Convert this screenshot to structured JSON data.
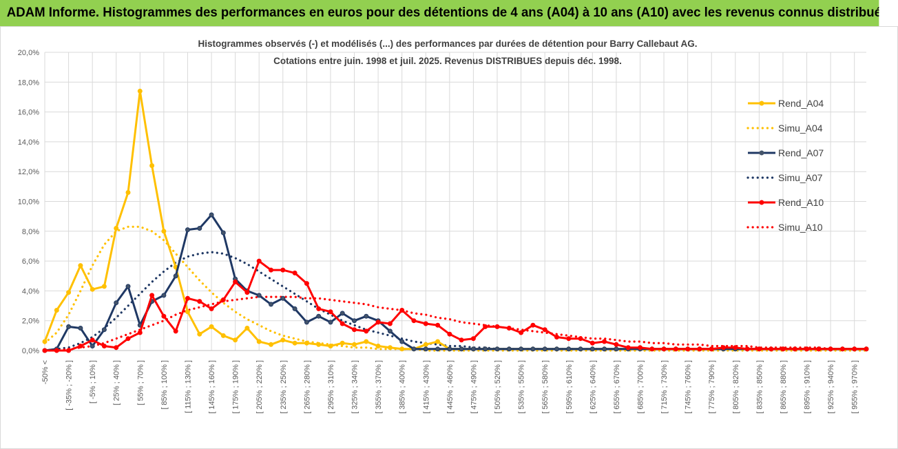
{
  "banner": {
    "title": "ADAM Informe. Histogrammes des performances en euros pour des détentions de 4 ans (A04) à 10 ans (A10) avec les revenus connus distribués"
  },
  "colors": {
    "banner_bg": "#92d050",
    "rend_a04": "#ffc000",
    "simu_a04": "#ffc000",
    "rend_a07": "#1f3864",
    "simu_a07": "#1f3864",
    "rend_a10": "#ff0000",
    "simu_a10": "#ff0000"
  },
  "chart_data": {
    "type": "line",
    "title_lines": [
      "Histogrammes observés (-) et modélisés (...)  des performances par durées de détention pour Barry Callebaut AG.",
      "Cotations entre juin. 1998 et juil. 2025. Revenus DISTRIBUES depuis déc. 1998."
    ],
    "xlabel": "",
    "ylabel": "",
    "ylim": [
      0,
      0.2
    ],
    "y_ticks": [
      "0,0%",
      "2,0%",
      "4,0%",
      "6,0%",
      "8,0%",
      "10,0%",
      "12,0%",
      "14,0%",
      "16,0%",
      "18,0%",
      "20,0%"
    ],
    "y_tick_values": [
      0,
      0.02,
      0.04,
      0.06,
      0.08,
      0.1,
      0.12,
      0.14,
      0.16,
      0.18,
      0.2
    ],
    "grid": true,
    "legend_position": "top-right",
    "x_tick_labels": [
      "-50% <",
      "[ -35% ; -20% ]",
      "[ -5% ; 10% ]",
      "[ 25% ; 40% ]",
      "[ 55% ; 70% ]",
      "[ 85% ; 100% ]",
      "[ 115% ; 130% ]",
      "[ 145% ; 160% ]",
      "[ 175% ; 190% ]",
      "[ 205% ; 220% ]",
      "[ 235% ; 250% ]",
      "[ 265% ; 280% ]",
      "[ 295% ; 310% ]",
      "[ 325% ; 340% ]",
      "[ 355% ; 370% ]",
      "[ 385% ; 400% ]",
      "[ 415% ; 430% ]",
      "[ 445% ; 460% ]",
      "[ 475% ; 490% ]",
      "[ 505% ; 520% ]",
      "[ 535% ; 550% ]",
      "[ 565% ; 580% ]",
      "[ 595% ; 610% ]",
      "[ 625% ; 640% ]",
      "[ 655% ; 670% ]",
      "[ 685% ; 700% ]",
      "[ 715% ; 730% ]",
      "[ 745% ; 760% ]",
      "[ 775% ; 790% ]",
      "[ 805% ; 820% ]",
      "[ 835% ; 850% ]",
      "[ 865% ; 880% ]",
      "[ 895% ; 910% ]",
      "[ 925% ; 940% ]",
      "[ 955% ; 970% ]"
    ],
    "series": [
      {
        "name": "Rend_A04",
        "style": "solid-markers",
        "color": "#ffc000",
        "values": [
          0.006,
          0.027,
          0.039,
          0.057,
          0.041,
          0.043,
          0.082,
          0.106,
          0.174,
          0.124,
          0.08,
          0.056,
          0.026,
          0.011,
          0.016,
          0.01,
          0.007,
          0.015,
          0.006,
          0.004,
          0.007,
          0.005,
          0.005,
          0.004,
          0.003,
          0.005,
          0.004,
          0.006,
          0.003,
          0.002,
          0.001,
          0.001,
          0.004,
          0.006,
          0.001,
          0.001,
          0.001,
          0.001,
          0.001,
          0.001,
          0.001,
          0.001,
          0.001,
          0.001,
          0.001,
          0.001,
          0.001,
          0.001,
          0.001,
          0.001,
          0.001,
          0.001,
          0.001,
          0.001,
          0.001,
          0.001,
          0.001,
          0.001,
          0.001,
          0.001,
          0.001,
          0.001,
          0.001,
          0.001,
          0.001,
          0.001,
          0.001,
          0.001,
          0.001,
          0.001
        ]
      },
      {
        "name": "Simu_A04",
        "style": "dotted",
        "color": "#ffc000",
        "values": [
          0.005,
          0.012,
          0.024,
          0.04,
          0.057,
          0.071,
          0.08,
          0.083,
          0.083,
          0.08,
          0.074,
          0.065,
          0.056,
          0.047,
          0.039,
          0.032,
          0.026,
          0.021,
          0.017,
          0.013,
          0.01,
          0.008,
          0.006,
          0.005,
          0.004,
          0.003,
          0.002,
          0.002,
          0.001,
          0.001,
          0.001,
          0.001,
          0,
          0,
          0,
          0,
          0,
          0,
          0,
          0,
          0,
          0,
          0,
          0,
          0,
          0,
          0,
          0,
          0,
          0,
          0,
          0,
          0,
          0,
          0,
          0,
          0,
          0,
          0,
          0,
          0,
          0,
          0,
          0,
          0,
          0,
          0,
          0,
          0,
          0
        ]
      },
      {
        "name": "Rend_A07",
        "style": "solid-markers",
        "color": "#1f3864",
        "values": [
          0.0,
          0.001,
          0.016,
          0.015,
          0.003,
          0.014,
          0.032,
          0.043,
          0.017,
          0.033,
          0.037,
          0.05,
          0.081,
          0.082,
          0.091,
          0.079,
          0.048,
          0.04,
          0.037,
          0.031,
          0.035,
          0.028,
          0.019,
          0.023,
          0.019,
          0.025,
          0.02,
          0.023,
          0.02,
          0.013,
          0.006,
          0.001,
          0.001,
          0.001,
          0.001,
          0.001,
          0.001,
          0.001,
          0.001,
          0.001,
          0.001,
          0.001,
          0.001,
          0.001,
          0.001,
          0.001,
          0.001,
          0.001,
          0.001,
          0.001,
          0.001,
          0.001,
          0.001,
          0.001,
          0.001,
          0.001,
          0.001,
          0.001,
          0.001,
          0.001,
          0.001,
          0.001,
          0.001,
          0.001,
          0.001,
          0.001,
          0.001,
          0.001,
          0.001,
          0.001
        ]
      },
      {
        "name": "Simu_A07",
        "style": "dotted",
        "color": "#1f3864",
        "values": [
          0.0,
          0.001,
          0.002,
          0.005,
          0.009,
          0.015,
          0.022,
          0.03,
          0.038,
          0.046,
          0.053,
          0.059,
          0.063,
          0.065,
          0.066,
          0.065,
          0.062,
          0.058,
          0.053,
          0.048,
          0.043,
          0.038,
          0.033,
          0.028,
          0.024,
          0.02,
          0.017,
          0.014,
          0.012,
          0.01,
          0.008,
          0.006,
          0.005,
          0.004,
          0.003,
          0.003,
          0.002,
          0.002,
          0.001,
          0.001,
          0.001,
          0.001,
          0.001,
          0.001,
          0.001,
          0.001,
          0.001,
          0.001,
          0.001,
          0.001,
          0.001,
          0.001,
          0.001,
          0.001,
          0.001,
          0.001,
          0.001,
          0.001,
          0.001,
          0.001,
          0.001,
          0.001,
          0.001,
          0.001,
          0.001,
          0.001,
          0.001,
          0.001,
          0.001,
          0.001
        ]
      },
      {
        "name": "Rend_A10",
        "style": "solid-markers",
        "color": "#ff0000",
        "values": [
          0.0,
          0.0,
          0.0,
          0.003,
          0.007,
          0.003,
          0.002,
          0.008,
          0.012,
          0.037,
          0.023,
          0.013,
          0.035,
          0.033,
          0.028,
          0.034,
          0.046,
          0.039,
          0.06,
          0.054,
          0.054,
          0.052,
          0.045,
          0.028,
          0.026,
          0.018,
          0.014,
          0.013,
          0.019,
          0.018,
          0.027,
          0.02,
          0.018,
          0.017,
          0.011,
          0.007,
          0.008,
          0.016,
          0.016,
          0.015,
          0.012,
          0.017,
          0.014,
          0.009,
          0.008,
          0.008,
          0.005,
          0.006,
          0.004,
          0.002,
          0.002,
          0.001,
          0.001,
          0.001,
          0.001,
          0.001,
          0.001,
          0.002,
          0.002,
          0.001,
          0.001,
          0.001,
          0.001,
          0.001,
          0.001,
          0.001,
          0.001,
          0.001,
          0.001,
          0.001
        ]
      },
      {
        "name": "Simu_A10",
        "style": "dotted",
        "color": "#ff0000",
        "values": [
          0.0,
          0.0,
          0.001,
          0.002,
          0.003,
          0.005,
          0.008,
          0.011,
          0.014,
          0.017,
          0.02,
          0.024,
          0.027,
          0.029,
          0.031,
          0.033,
          0.034,
          0.035,
          0.036,
          0.036,
          0.036,
          0.036,
          0.035,
          0.035,
          0.034,
          0.033,
          0.032,
          0.031,
          0.029,
          0.028,
          0.027,
          0.025,
          0.024,
          0.022,
          0.021,
          0.019,
          0.018,
          0.017,
          0.016,
          0.015,
          0.014,
          0.013,
          0.012,
          0.011,
          0.01,
          0.009,
          0.008,
          0.008,
          0.007,
          0.006,
          0.006,
          0.005,
          0.005,
          0.004,
          0.004,
          0.004,
          0.003,
          0.003,
          0.003,
          0.003,
          0.002,
          0.002,
          0.002,
          0.002,
          0.002,
          0.002,
          0.001,
          0.001,
          0.001,
          0.001
        ]
      }
    ]
  }
}
